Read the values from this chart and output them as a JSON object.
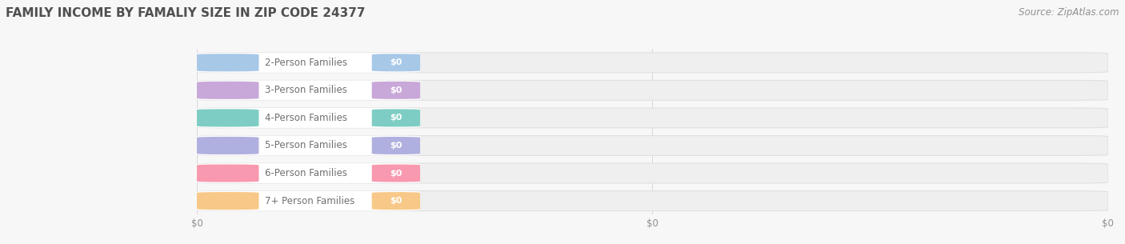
{
  "title": "FAMILY INCOME BY FAMALIY SIZE IN ZIP CODE 24377",
  "source": "Source: ZipAtlas.com",
  "categories": [
    "2-Person Families",
    "3-Person Families",
    "4-Person Families",
    "5-Person Families",
    "6-Person Families",
    "7+ Person Families"
  ],
  "values": [
    0,
    0,
    0,
    0,
    0,
    0
  ],
  "bar_colors": [
    "#a8c8e8",
    "#c8a8d8",
    "#7ecdc4",
    "#b0b0e0",
    "#f899b0",
    "#f8c888"
  ],
  "dot_colors": [
    "#88b8e0",
    "#b898cc",
    "#5cbdb5",
    "#9898d0",
    "#f07898",
    "#f0b868"
  ],
  "label_color": "#707070",
  "bg_color": "#f7f7f7",
  "bar_bg_color": "#efefef",
  "bar_bg_border": "#e0e0e0",
  "title_color": "#505050",
  "source_color": "#909090",
  "grid_color": "#d8d8d8",
  "tick_color": "#909090",
  "title_fontsize": 11,
  "label_fontsize": 8.5,
  "value_fontsize": 8,
  "source_fontsize": 8.5,
  "tick_fontsize": 8.5
}
